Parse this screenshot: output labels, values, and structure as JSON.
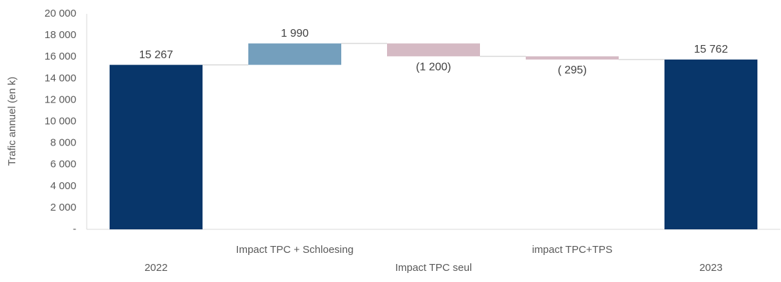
{
  "chart_data": {
    "type": "waterfall",
    "y_label": "Trafic annuel (en k)",
    "categories": [
      "2022",
      "Impact TPC + Schloesing",
      "Impact TPC seul",
      "impact TPC+TPS",
      "2023"
    ],
    "values": [
      15267,
      1990,
      -1200,
      -295,
      15762
    ],
    "value_labels": [
      "15 267",
      "1 990",
      "(1 200)",
      "( 295)",
      "15 762"
    ],
    "is_total": [
      true,
      false,
      false,
      false,
      true
    ],
    "colors": {
      "total": "#08366a",
      "increase": "#749fbd",
      "decrease": "#d5bac4"
    },
    "ylim": [
      0,
      20000
    ],
    "yticks": [
      {
        "value": 0,
        "label": "-"
      },
      {
        "value": 2000,
        "label": "2 000"
      },
      {
        "value": 4000,
        "label": "4 000"
      },
      {
        "value": 6000,
        "label": "6 000"
      },
      {
        "value": 8000,
        "label": "8 000"
      },
      {
        "value": 10000,
        "label": "10 000"
      },
      {
        "value": 12000,
        "label": "12 000"
      },
      {
        "value": 14000,
        "label": "14 000"
      },
      {
        "value": 16000,
        "label": "16 000"
      },
      {
        "value": 18000,
        "label": "18 000"
      },
      {
        "value": 20000,
        "label": "20 000"
      }
    ],
    "grid": false
  }
}
